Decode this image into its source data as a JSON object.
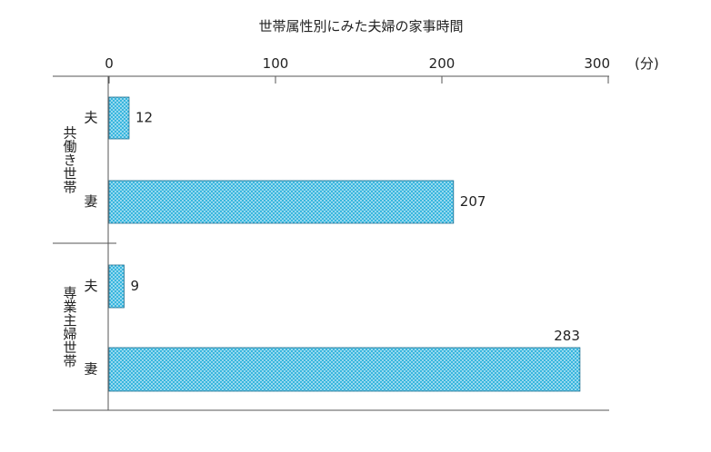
{
  "chart_data": {
    "type": "bar",
    "orientation": "horizontal",
    "title": "世帯属性別にみた夫婦の家事時間",
    "unit_label": "(分)",
    "x_ticks": [
      "0",
      "100",
      "200",
      "300"
    ],
    "xlim": [
      0,
      300
    ],
    "groups": [
      {
        "label": "共働き世帯",
        "bars": [
          {
            "category": "夫",
            "value": 12
          },
          {
            "category": "妻",
            "value": 207
          }
        ]
      },
      {
        "label": "専業主婦世帯",
        "bars": [
          {
            "category": "夫",
            "value": 9
          },
          {
            "category": "妻",
            "value": 283
          }
        ]
      }
    ],
    "bar_color": "#38b6de",
    "grid": false
  }
}
